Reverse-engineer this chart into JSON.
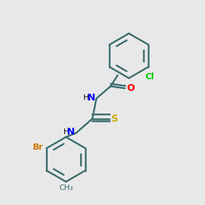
{
  "background_color": "#e8e8e8",
  "bond_color": "#3a6b6b",
  "bond_width": 1.8,
  "atom_colors": {
    "C": "#000000",
    "H": "#000000",
    "N": "#0000ff",
    "O": "#ff0000",
    "S": "#ccaa00",
    "Cl": "#00cc00",
    "Br": "#cc7700",
    "CH3": "#3a6b6b"
  },
  "figsize": [
    3.0,
    3.0
  ],
  "dpi": 100
}
